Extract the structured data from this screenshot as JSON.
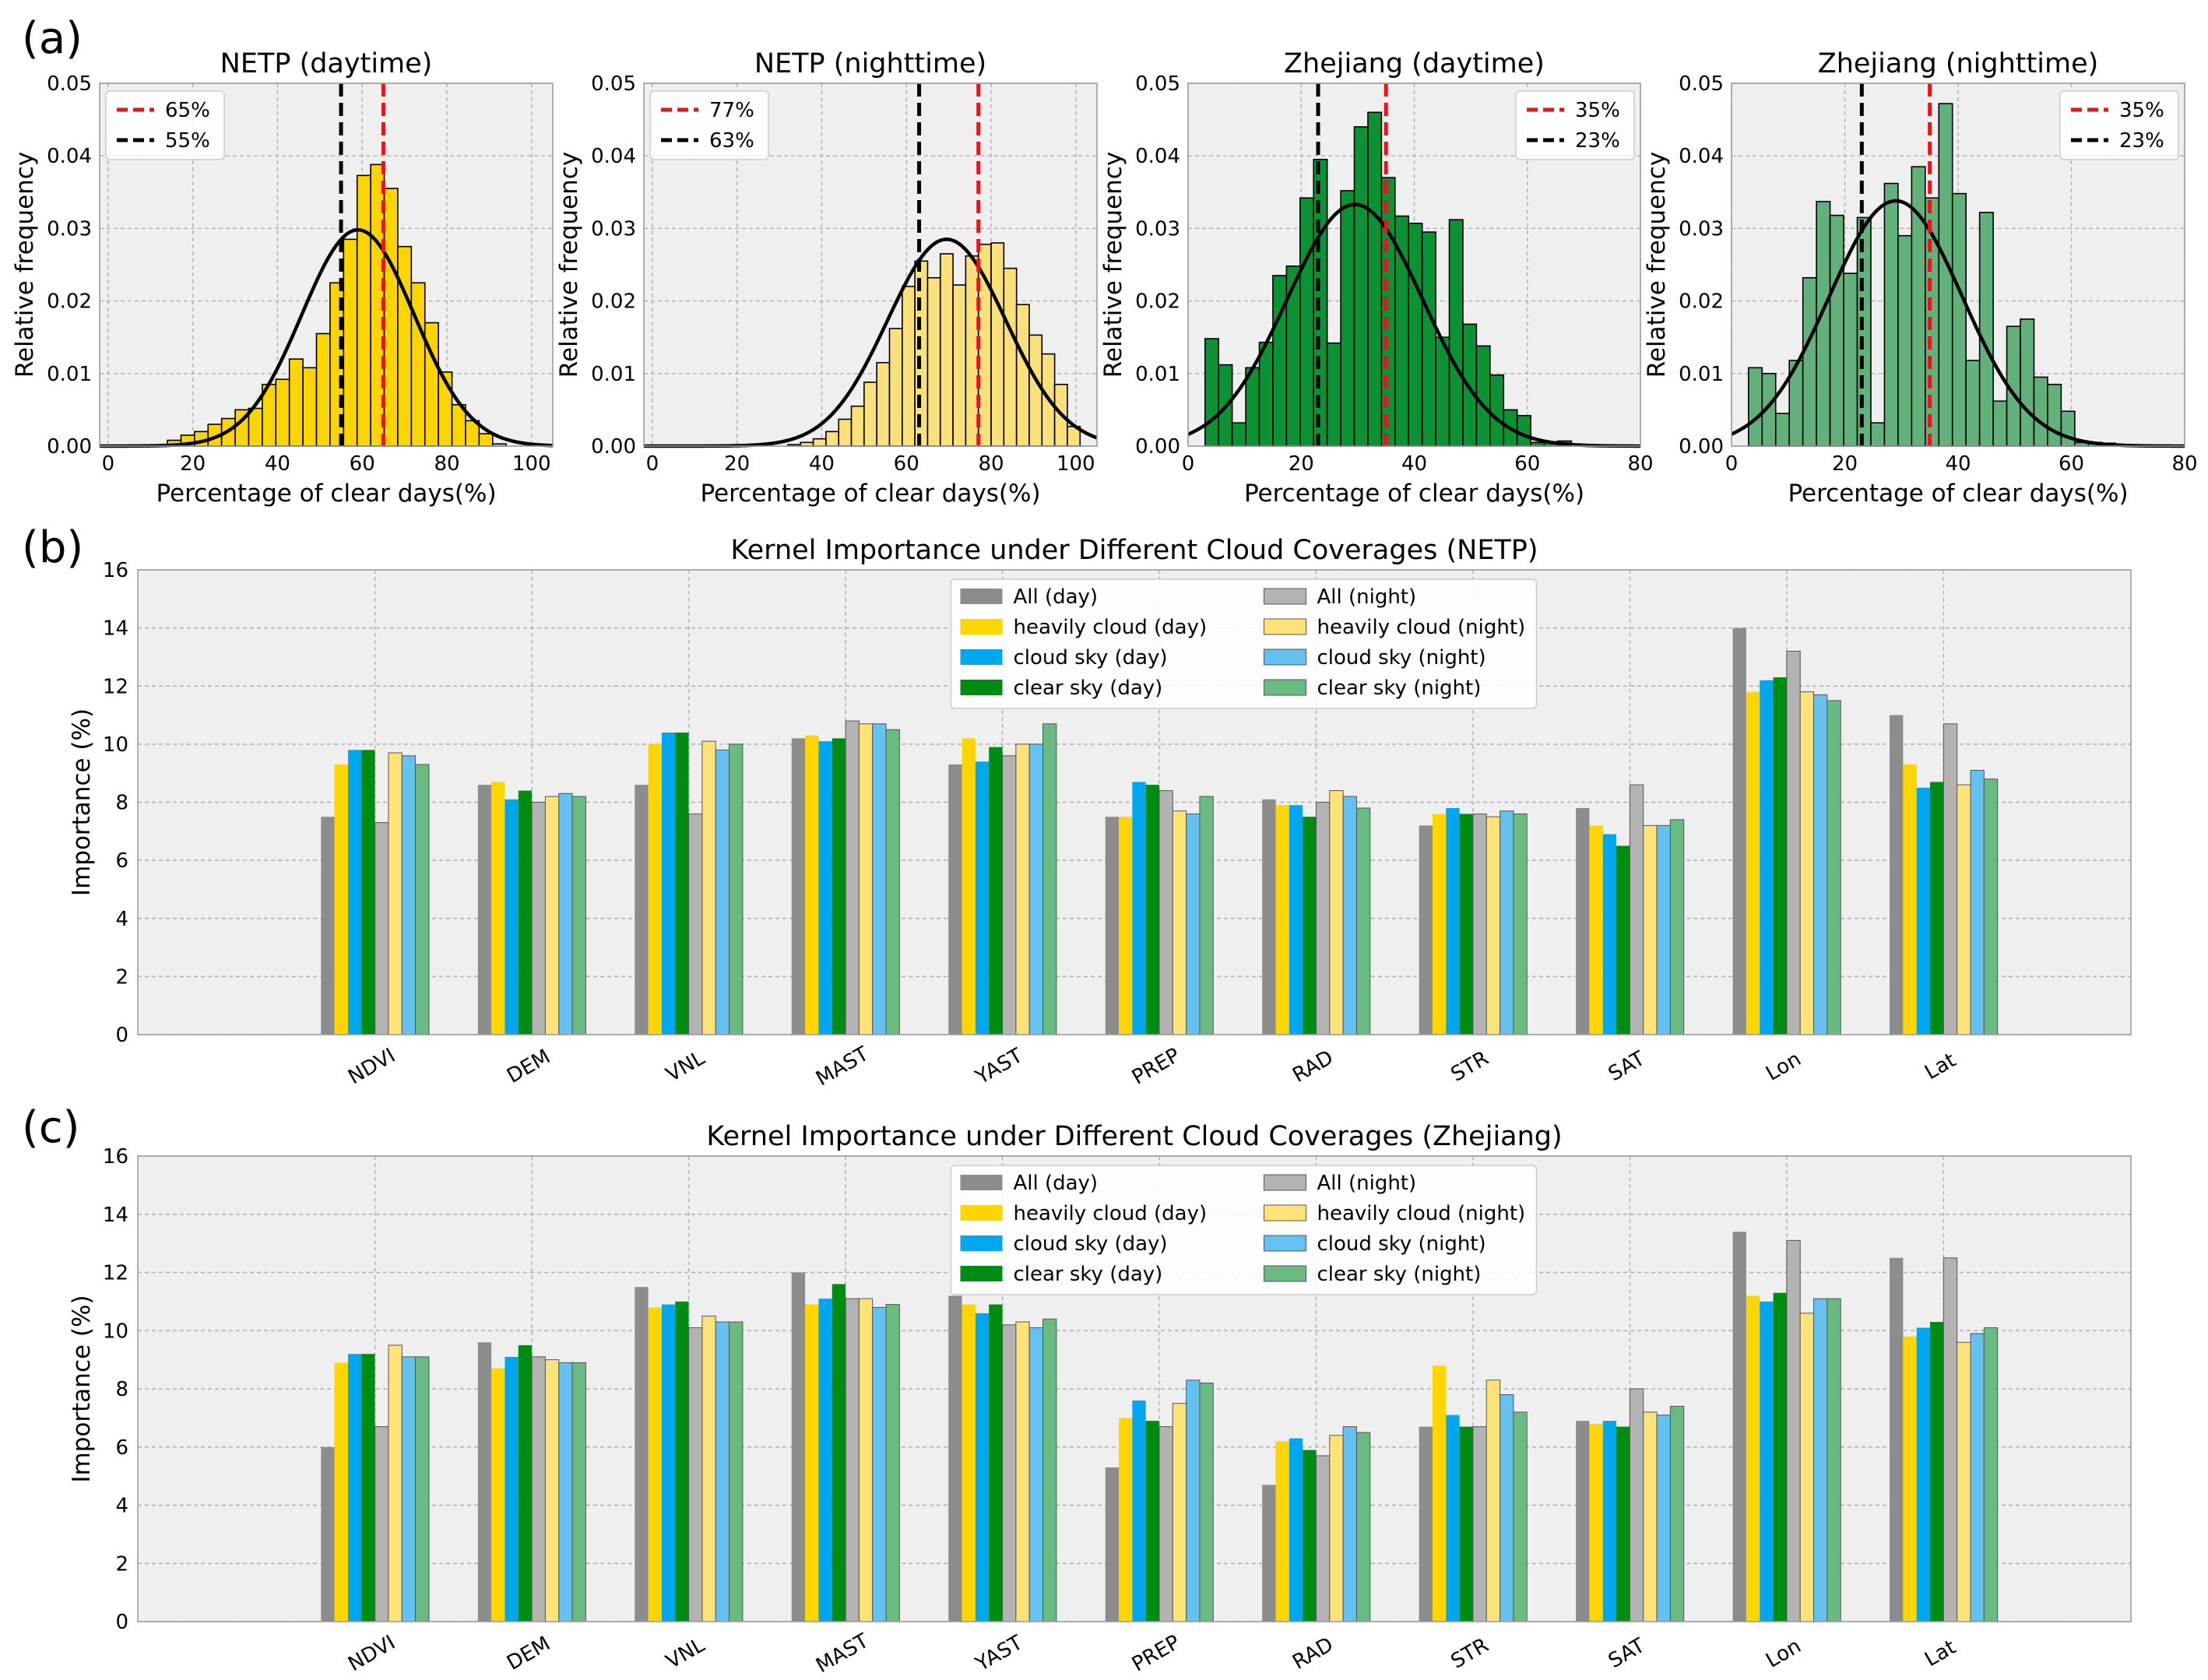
{
  "panels": {
    "a": "(a)",
    "b": "(b)",
    "c": "(c)"
  },
  "colors": {
    "plot_bg": "#efefef",
    "grid": "#b0b0b0",
    "red_line": "#e8141c",
    "black_line": "#000000",
    "yellow": "#fcd400",
    "light_yellow": "#fae07a",
    "green": "#0c9234",
    "light_green": "#62b07a",
    "all_day": "#8c8c8c",
    "heavily_day": "#ffd500",
    "cloud_day": "#00a6ee",
    "clear_day": "#008c12",
    "all_night": "#b3b3b3",
    "heavily_night": "#ffe278",
    "cloud_night": "#64c1f0",
    "clear_night": "#6abb82"
  },
  "chart_data": [
    {
      "id": "hist1",
      "type": "bar",
      "subtype": "histogram",
      "title": "NETP (daytime)",
      "xlabel": "Percentage of clear days(%)",
      "ylabel": "Relative frequency",
      "xlim": [
        -2,
        105
      ],
      "ylim": [
        0,
        0.05
      ],
      "xticks": [
        "0",
        "20",
        "40",
        "60",
        "80",
        "100"
      ],
      "xtick_values": [
        0,
        20,
        40,
        60,
        80,
        100
      ],
      "yticks": [
        "0.00",
        "0.01",
        "0.02",
        "0.03",
        "0.04",
        "0.05"
      ],
      "ytick_values": [
        0,
        0.01,
        0.02,
        0.03,
        0.04,
        0.05
      ],
      "bin_start": 14,
      "bin_width": 3.2,
      "values": [
        0.0008,
        0.0015,
        0.002,
        0.003,
        0.0038,
        0.005,
        0.0052,
        0.0085,
        0.0092,
        0.012,
        0.0108,
        0.0155,
        0.0225,
        0.0285,
        0.0373,
        0.0388,
        0.0355,
        0.0275,
        0.0225,
        0.017,
        0.0102,
        0.0057,
        0.0035,
        0.0017,
        0.0003
      ],
      "fit": {
        "mean": 59,
        "sd": 13.3,
        "peak": 0.0298
      },
      "lines": [
        {
          "x": 65,
          "label": "65%",
          "color": "red"
        },
        {
          "x": 55,
          "label": "55%",
          "color": "black"
        }
      ],
      "legend": "top-left",
      "bar_color": "yellow"
    },
    {
      "id": "hist2",
      "type": "bar",
      "subtype": "histogram",
      "title": "NETP (nighttime)",
      "xlabel": "Percentage of clear days(%)",
      "ylabel": "Relative frequency",
      "xlim": [
        -2,
        105
      ],
      "ylim": [
        0,
        0.05
      ],
      "xticks": [
        "0",
        "20",
        "40",
        "60",
        "80",
        "100"
      ],
      "xtick_values": [
        0,
        20,
        40,
        60,
        80,
        100
      ],
      "yticks": [
        "0.00",
        "0.01",
        "0.02",
        "0.03",
        "0.04",
        "0.05"
      ],
      "ytick_values": [
        0,
        0.01,
        0.02,
        0.03,
        0.04,
        0.05
      ],
      "bin_start": 32,
      "bin_width": 3.0,
      "values": [
        0.0002,
        0.0005,
        0.001,
        0.002,
        0.0037,
        0.0055,
        0.0088,
        0.0115,
        0.0162,
        0.022,
        0.0255,
        0.0232,
        0.0265,
        0.0222,
        0.0262,
        0.0278,
        0.028,
        0.0245,
        0.0195,
        0.0153,
        0.0127,
        0.0085,
        0.0027
      ],
      "fit": {
        "mean": 69.5,
        "sd": 14,
        "peak": 0.0285
      },
      "lines": [
        {
          "x": 77,
          "label": "77%",
          "color": "red"
        },
        {
          "x": 63,
          "label": "63%",
          "color": "black"
        }
      ],
      "legend": "top-left",
      "bar_color": "light_yellow"
    },
    {
      "id": "hist3",
      "type": "bar",
      "subtype": "histogram",
      "title": "Zhejiang (daytime)",
      "xlabel": "Percentage of clear days(%)",
      "ylabel": "Relative frequency",
      "xlim": [
        0,
        80
      ],
      "ylim": [
        0,
        0.05
      ],
      "xticks": [
        "0",
        "20",
        "40",
        "60",
        "80"
      ],
      "xtick_values": [
        0,
        20,
        40,
        60,
        80
      ],
      "yticks": [
        "0.00",
        "0.01",
        "0.02",
        "0.03",
        "0.04",
        "0.05"
      ],
      "ytick_values": [
        0,
        0.01,
        0.02,
        0.03,
        0.04,
        0.05
      ],
      "bin_start": 3,
      "bin_width": 2.4,
      "values": [
        0.0148,
        0.0112,
        0.0032,
        0.0108,
        0.0143,
        0.0235,
        0.0248,
        0.0342,
        0.0395,
        0.0142,
        0.0352,
        0.044,
        0.046,
        0.037,
        0.0317,
        0.0307,
        0.0295,
        0.015,
        0.0312,
        0.0168,
        0.0138,
        0.0098,
        0.005,
        0.0042,
        0.0005,
        0.0006,
        0.0007
      ],
      "fit": {
        "mean": 29.5,
        "sd": 12,
        "peak": 0.0333
      },
      "lines": [
        {
          "x": 35,
          "label": "35%",
          "color": "red"
        },
        {
          "x": 23,
          "label": "23%",
          "color": "black"
        }
      ],
      "legend": "top-right",
      "bar_color": "green"
    },
    {
      "id": "hist4",
      "type": "bar",
      "subtype": "histogram",
      "title": "Zhejiang (nighttime)",
      "xlabel": "Percentage of clear days(%)",
      "ylabel": "Relative frequency",
      "xlim": [
        0,
        80
      ],
      "ylim": [
        0,
        0.05
      ],
      "xticks": [
        "0",
        "20",
        "40",
        "60",
        "80"
      ],
      "xtick_values": [
        0,
        20,
        40,
        60,
        80
      ],
      "yticks": [
        "0.00",
        "0.01",
        "0.02",
        "0.03",
        "0.04",
        "0.05"
      ],
      "ytick_values": [
        0,
        0.01,
        0.02,
        0.03,
        0.04,
        0.05
      ],
      "bin_start": 3,
      "bin_width": 2.4,
      "values": [
        0.0108,
        0.01,
        0.0045,
        0.0118,
        0.0232,
        0.0337,
        0.0318,
        0.0238,
        0.0315,
        0.0032,
        0.0362,
        0.029,
        0.0385,
        0.0342,
        0.0472,
        0.0348,
        0.0118,
        0.0322,
        0.0062,
        0.0165,
        0.0175,
        0.0095,
        0.0085,
        0.0048,
        0.0005,
        0.0005,
        0.0004
      ],
      "fit": {
        "mean": 29,
        "sd": 11.8,
        "peak": 0.0338
      },
      "lines": [
        {
          "x": 35,
          "label": "35%",
          "color": "red"
        },
        {
          "x": 23,
          "label": "23%",
          "color": "black"
        }
      ],
      "legend": "top-right",
      "bar_color": "light_green"
    },
    {
      "id": "barb",
      "type": "bar",
      "title": "Kernel Importance under Different Cloud Coverages (NETP)",
      "xlabel": "",
      "ylabel": "Importance (%)",
      "ylim": [
        0,
        16
      ],
      "yticks": [
        "0",
        "2",
        "4",
        "6",
        "8",
        "10",
        "12",
        "14",
        "16"
      ],
      "ytick_values": [
        0,
        2,
        4,
        6,
        8,
        10,
        12,
        14,
        16
      ],
      "categories": [
        "NDVI",
        "DEM",
        "VNL",
        "MAST",
        "YAST",
        "PREP",
        "RAD",
        "STR",
        "SAT",
        "Lon",
        "Lat"
      ],
      "legend": "top-center",
      "series": [
        {
          "name": "All (day)",
          "color": "all_day",
          "values": [
            7.5,
            8.6,
            8.6,
            10.2,
            9.3,
            7.5,
            8.1,
            7.2,
            7.8,
            14.0,
            11.0
          ]
        },
        {
          "name": "heavily cloud (day)",
          "color": "heavily_day",
          "values": [
            9.3,
            8.7,
            10.0,
            10.3,
            10.2,
            7.5,
            7.9,
            7.6,
            7.2,
            11.8,
            9.3
          ]
        },
        {
          "name": "cloud sky (day)",
          "color": "cloud_day",
          "values": [
            9.8,
            8.1,
            10.4,
            10.1,
            9.4,
            8.7,
            7.9,
            7.8,
            6.9,
            12.2,
            8.5
          ]
        },
        {
          "name": "clear sky (day)",
          "color": "clear_day",
          "values": [
            9.8,
            8.4,
            10.4,
            10.2,
            9.9,
            8.6,
            7.5,
            7.6,
            6.5,
            12.3,
            8.7
          ]
        },
        {
          "name": "All (night)",
          "color": "all_night",
          "values": [
            7.3,
            8.0,
            7.6,
            10.8,
            9.6,
            8.4,
            8.0,
            7.6,
            8.6,
            13.2,
            10.7
          ]
        },
        {
          "name": "heavily cloud (night)",
          "color": "heavily_night",
          "values": [
            9.7,
            8.2,
            10.1,
            10.7,
            10.0,
            7.7,
            8.4,
            7.5,
            7.2,
            11.8,
            8.6
          ]
        },
        {
          "name": "cloud sky (night)",
          "color": "cloud_night",
          "values": [
            9.6,
            8.3,
            9.8,
            10.7,
            10.0,
            7.6,
            8.2,
            7.7,
            7.2,
            11.7,
            9.1
          ]
        },
        {
          "name": "clear sky (night)",
          "color": "clear_night",
          "values": [
            9.3,
            8.2,
            10.0,
            10.5,
            10.7,
            8.2,
            7.8,
            7.6,
            7.4,
            11.5,
            8.8
          ]
        }
      ]
    },
    {
      "id": "barc",
      "type": "bar",
      "title": "Kernel Importance under Different Cloud Coverages (Zhejiang)",
      "xlabel": "",
      "ylabel": "Importance (%)",
      "ylim": [
        0,
        16
      ],
      "yticks": [
        "0",
        "2",
        "4",
        "6",
        "8",
        "10",
        "12",
        "14",
        "16"
      ],
      "ytick_values": [
        0,
        2,
        4,
        6,
        8,
        10,
        12,
        14,
        16
      ],
      "categories": [
        "NDVI",
        "DEM",
        "VNL",
        "MAST",
        "YAST",
        "PREP",
        "RAD",
        "STR",
        "SAT",
        "Lon",
        "Lat"
      ],
      "legend": "top-center",
      "series": [
        {
          "name": "All (day)",
          "color": "all_day",
          "values": [
            6.0,
            9.6,
            11.5,
            12.0,
            11.2,
            5.3,
            4.7,
            6.7,
            6.9,
            13.4,
            12.5
          ]
        },
        {
          "name": "heavily cloud (day)",
          "color": "heavily_day",
          "values": [
            8.9,
            8.7,
            10.8,
            10.9,
            10.9,
            7.0,
            6.2,
            8.8,
            6.8,
            11.2,
            9.8
          ]
        },
        {
          "name": "cloud sky (day)",
          "color": "cloud_day",
          "values": [
            9.2,
            9.1,
            10.9,
            11.1,
            10.6,
            7.6,
            6.3,
            7.1,
            6.9,
            11.0,
            10.1
          ]
        },
        {
          "name": "clear sky (day)",
          "color": "clear_day",
          "values": [
            9.2,
            9.5,
            11.0,
            11.6,
            10.9,
            6.9,
            5.9,
            6.7,
            6.7,
            11.3,
            10.3
          ]
        },
        {
          "name": "All (night)",
          "color": "all_night",
          "values": [
            6.7,
            9.1,
            10.1,
            11.1,
            10.2,
            6.7,
            5.7,
            6.7,
            8.0,
            13.1,
            12.5
          ]
        },
        {
          "name": "heavily cloud (night)",
          "color": "heavily_night",
          "values": [
            9.5,
            9.0,
            10.5,
            11.1,
            10.3,
            7.5,
            6.4,
            8.3,
            7.2,
            10.6,
            9.6
          ]
        },
        {
          "name": "cloud sky (night)",
          "color": "cloud_night",
          "values": [
            9.1,
            8.9,
            10.3,
            10.8,
            10.1,
            8.3,
            6.7,
            7.8,
            7.1,
            11.1,
            9.9
          ]
        },
        {
          "name": "clear sky (night)",
          "color": "clear_night",
          "values": [
            9.1,
            8.9,
            10.3,
            10.9,
            10.4,
            8.2,
            6.5,
            7.2,
            7.4,
            11.1,
            10.1
          ]
        }
      ]
    }
  ]
}
